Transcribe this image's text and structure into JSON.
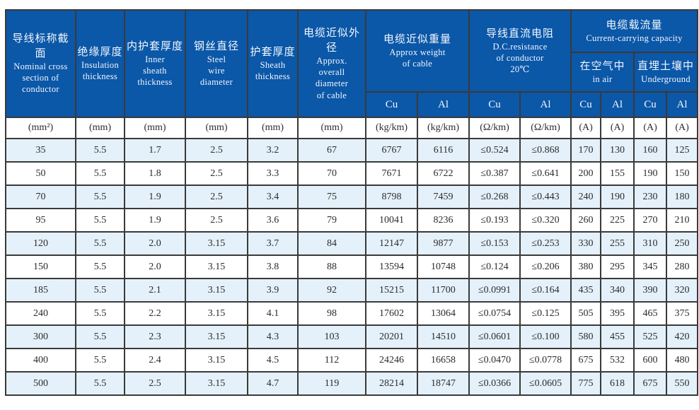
{
  "table": {
    "title_semantic": "Steel wire armoured cable specification table",
    "accent_color": "#0b57a8",
    "alt_row_color": "#e4f1fa",
    "border_color": "#3a3a3a",
    "header": {
      "nominal": {
        "zh": "导线标称截面",
        "en": "Nominal cross\nsection of\nconductor"
      },
      "insulation": {
        "zh": "绝缘厚度",
        "en": "Insulation\nthickness"
      },
      "inner_sheath": {
        "zh": "内护套厚度",
        "en": "Inner\nsheath\nthickness"
      },
      "steel_wire": {
        "zh": "钢丝直径",
        "en": "Steel\nwire\ndiameter"
      },
      "sheath": {
        "zh": "护套厚度",
        "en": "Sheath\nthickness"
      },
      "diameter": {
        "zh": "电缆近似外径",
        "en": "Approx.\noverall\ndiameter\nof cable"
      },
      "weight": {
        "zh": "电缆近似重量",
        "en": "Approx weight\nof cable"
      },
      "resistance": {
        "zh": "导线直流电阻",
        "en": "D.C.resistance\nof conductor\n20℃"
      },
      "capacity": {
        "zh": "电缆载流量",
        "en": "Current-carrying capacity"
      },
      "in_air": {
        "zh": "在空气中",
        "en": "in air"
      },
      "underground": {
        "zh": "直埋土壤中",
        "en": "Underground"
      },
      "cu": "Cu",
      "al": "Al"
    },
    "units": [
      "(mm²)",
      "(mm)",
      "(mm)",
      "(mm)",
      "(mm)",
      "(mm)",
      "(kg/km)",
      "(kg/km)",
      "(Ω/km)",
      "(Ω/km)",
      "(A)",
      "(A)",
      "(A)",
      "(A)"
    ],
    "rows": [
      [
        "35",
        "5.5",
        "1.7",
        "2.5",
        "3.2",
        "67",
        "6767",
        "6116",
        "≤0.524",
        "≤0.868",
        "170",
        "130",
        "160",
        "125"
      ],
      [
        "50",
        "5.5",
        "1.8",
        "2.5",
        "3.3",
        "70",
        "7671",
        "6722",
        "≤0.387",
        "≤0.641",
        "200",
        "155",
        "190",
        "150"
      ],
      [
        "70",
        "5.5",
        "1.9",
        "2.5",
        "3.4",
        "75",
        "8798",
        "7459",
        "≤0.268",
        "≤0.443",
        "240",
        "190",
        "230",
        "180"
      ],
      [
        "95",
        "5.5",
        "1.9",
        "2.5",
        "3.6",
        "79",
        "10041",
        "8236",
        "≤0.193",
        "≤0.320",
        "260",
        "225",
        "270",
        "210"
      ],
      [
        "120",
        "5.5",
        "2.0",
        "3.15",
        "3.7",
        "84",
        "12147",
        "9877",
        "≤0.153",
        "≤0.253",
        "330",
        "255",
        "310",
        "250"
      ],
      [
        "150",
        "5.5",
        "2.0",
        "3.15",
        "3.8",
        "88",
        "13594",
        "10748",
        "≤0.124",
        "≤0.206",
        "380",
        "295",
        "345",
        "280"
      ],
      [
        "185",
        "5.5",
        "2.1",
        "3.15",
        "3.9",
        "92",
        "15215",
        "11700",
        "≤0.0991",
        "≤0.164",
        "435",
        "340",
        "390",
        "320"
      ],
      [
        "240",
        "5.5",
        "2.2",
        "3.15",
        "4.1",
        "98",
        "17602",
        "13064",
        "≤0.0754",
        "≤0.125",
        "505",
        "395",
        "465",
        "375"
      ],
      [
        "300",
        "5.5",
        "2.3",
        "3.15",
        "4.3",
        "103",
        "20201",
        "14510",
        "≤0.0601",
        "≤0.100",
        "580",
        "455",
        "525",
        "420"
      ],
      [
        "400",
        "5.5",
        "2.4",
        "3.15",
        "4.5",
        "112",
        "24246",
        "16658",
        "≤0.0470",
        "≤0.0778",
        "675",
        "532",
        "600",
        "480"
      ],
      [
        "500",
        "5.5",
        "2.5",
        "3.15",
        "4.7",
        "119",
        "28214",
        "18747",
        "≤0.0366",
        "≤0.0605",
        "775",
        "618",
        "675",
        "550"
      ]
    ]
  }
}
